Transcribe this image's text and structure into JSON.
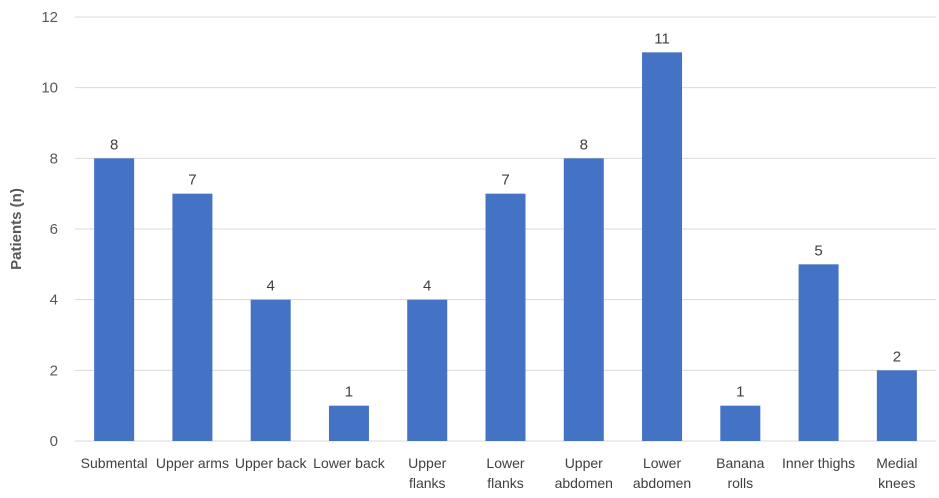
{
  "chart_data": {
    "type": "bar",
    "title": "",
    "xlabel": "",
    "ylabel": "Patients (n)",
    "ylim": [
      0,
      12
    ],
    "yticks": [
      0,
      2,
      4,
      6,
      8,
      10,
      12
    ],
    "grid": true,
    "legend": "none",
    "bar_color": "#4472c4",
    "categories": [
      "Submental",
      "Upper arms",
      "Upper back",
      "Lower back",
      "Upper flanks",
      "Lower flanks",
      "Upper abdomen",
      "Lower abdomen",
      "Banana rolls",
      "Inner thighs",
      "Medial knees"
    ],
    "category_lines": [
      [
        "Submental"
      ],
      [
        "Upper arms"
      ],
      [
        "Upper back"
      ],
      [
        "Lower back"
      ],
      [
        "Upper",
        "flanks"
      ],
      [
        "Lower",
        "flanks"
      ],
      [
        "Upper",
        "abdomen"
      ],
      [
        "Lower",
        "abdomen"
      ],
      [
        "Banana",
        "rolls"
      ],
      [
        "Inner thighs"
      ],
      [
        "Medial",
        "knees"
      ]
    ],
    "values": [
      8,
      7,
      4,
      1,
      4,
      7,
      8,
      11,
      1,
      5,
      2
    ]
  }
}
